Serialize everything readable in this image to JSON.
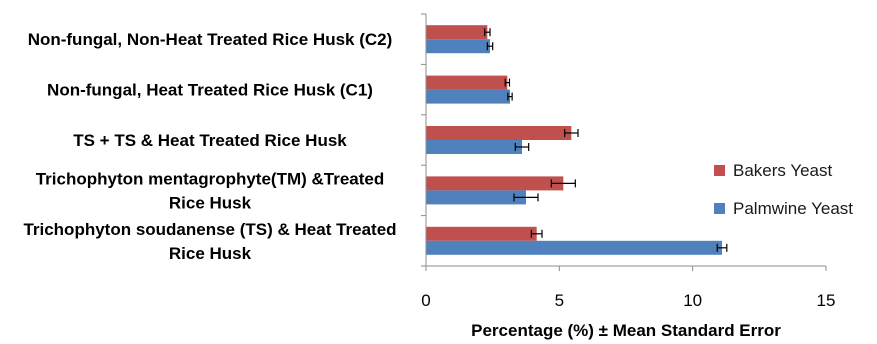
{
  "chart_data": {
    "type": "bar",
    "orientation": "horizontal",
    "categories": [
      [
        "Non-fungal, Non-Heat Treated Rice Husk  (C2)"
      ],
      [
        "Non-fungal, Heat Treated Rice Husk  (C1)"
      ],
      [
        "TS + TS & Heat Treated Rice Husk"
      ],
      [
        "Trichophyton mentagrophyte(TM) &Treated",
        "Rice Husk"
      ],
      [
        "Trichophyton soudanense (TS) & Heat Treated",
        "Rice  Husk"
      ]
    ],
    "series": [
      {
        "name": "Bakers Yeast",
        "color": "#c0504d",
        "values": [
          2.3,
          3.05,
          5.45,
          5.15,
          4.15
        ],
        "errors": [
          0.1,
          0.08,
          0.25,
          0.45,
          0.2
        ]
      },
      {
        "name": "Palmwine Yeast",
        "color": "#4f81bd",
        "values": [
          2.4,
          3.15,
          3.6,
          3.75,
          11.1
        ],
        "errors": [
          0.1,
          0.08,
          0.25,
          0.45,
          0.18
        ]
      }
    ],
    "xlabel": "Percentage (%) ± Mean Standard Error",
    "ylabel": "",
    "xlim": [
      0,
      15
    ],
    "xticks": [
      "0",
      "5",
      "10",
      "15"
    ],
    "grid": false,
    "legend_position": "right"
  }
}
